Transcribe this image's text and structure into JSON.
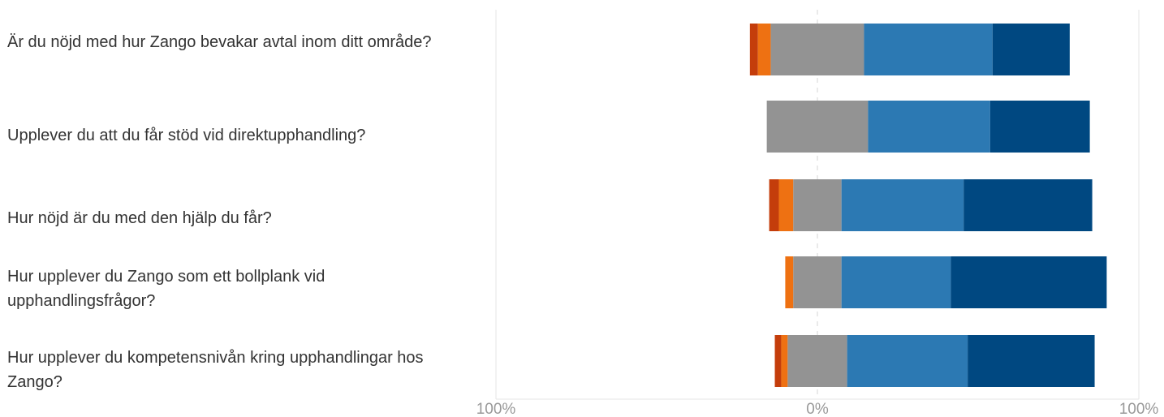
{
  "chart_data": {
    "type": "bar",
    "orientation": "horizontal",
    "stacked": "diverging",
    "categories": [
      "Är du nöjd med hur Zango bevakar avtal inom ditt område?",
      "Upplever du att du får stöd vid direktupphandling?",
      "Hur nöjd är du med den hjälp du får?",
      "Hur upplever du Zango som ett bollplank vid upphandlingsfrågor?",
      "Hur upplever du kompetensnivån kring upphandlingar hos Zango?"
    ],
    "series": [
      {
        "color": "#c43d0b",
        "side": "negative",
        "values": [
          2.5,
          0,
          3,
          0,
          2
        ]
      },
      {
        "color": "#ee7112",
        "side": "negative",
        "values": [
          4,
          0,
          4.5,
          2.5,
          2
        ]
      },
      {
        "color": "#939393",
        "side": "neutral",
        "values": [
          29,
          31.5,
          15,
          15,
          18.5
        ]
      },
      {
        "color": "#2c79b3",
        "side": "positive",
        "values": [
          40,
          38,
          38,
          34,
          37.5
        ]
      },
      {
        "color": "#004881",
        "side": "positive",
        "values": [
          24,
          31,
          40,
          48.5,
          39.5
        ]
      }
    ],
    "x_ticks": [
      "100%",
      "0%",
      "100%"
    ],
    "xlim": [
      -100,
      100
    ],
    "grid": true,
    "legend": "none"
  }
}
